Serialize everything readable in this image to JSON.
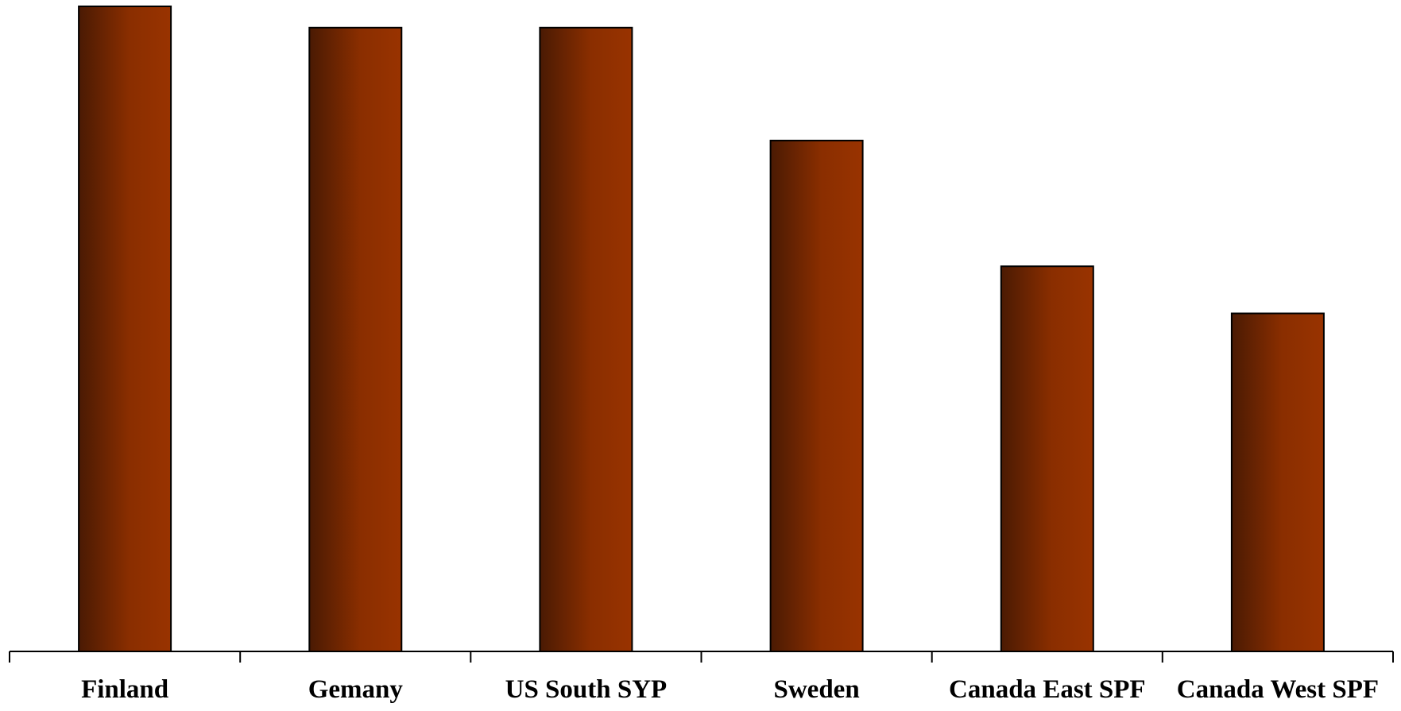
{
  "chart_data": {
    "type": "bar",
    "categories": [
      "Finland",
      "Gemany",
      "US South SYP",
      "Sweden",
      "Canada East SPF",
      "Canada West SPF"
    ],
    "values": [
      100,
      96.7,
      96.7,
      79.2,
      59.7,
      52.4
    ],
    "title": "",
    "xlabel": "",
    "ylabel": "",
    "ylim": [
      0,
      100
    ],
    "grid": false,
    "legend": "none",
    "colors": {
      "bar_dark": "#4a1a03",
      "bar_light": "#993300",
      "outline": "#000000"
    }
  }
}
